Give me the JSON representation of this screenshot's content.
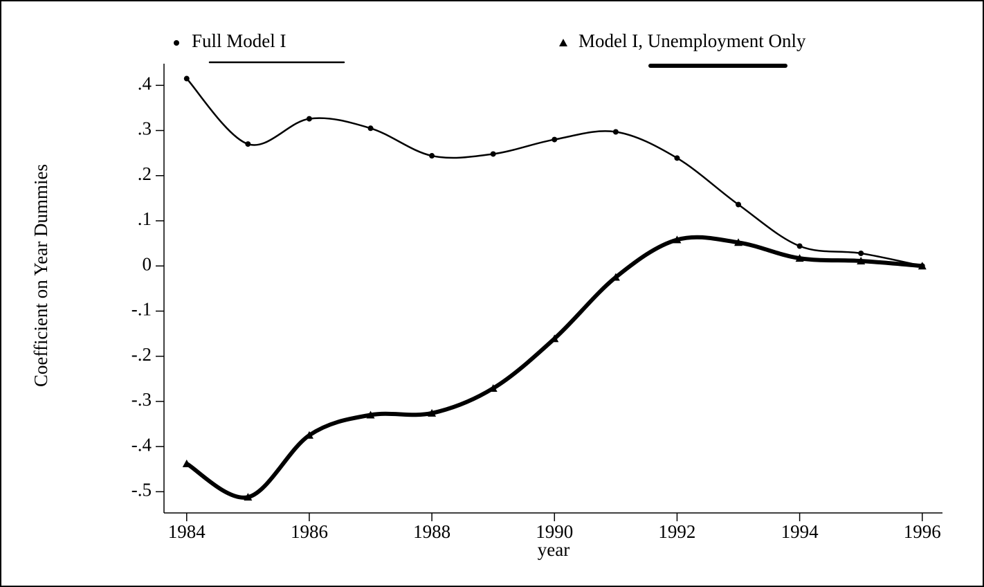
{
  "chart_data": {
    "type": "line",
    "x": [
      1984,
      1985,
      1986,
      1987,
      1988,
      1989,
      1990,
      1991,
      1992,
      1993,
      1994,
      1995,
      1996
    ],
    "series": [
      {
        "name": "Full Model I",
        "color": "#000000",
        "line_width": 2.5,
        "marker": "circle",
        "values": [
          0.415,
          0.27,
          0.326,
          0.305,
          0.244,
          0.248,
          0.28,
          0.297,
          0.239,
          0.136,
          0.044,
          0.028,
          0
        ]
      },
      {
        "name": "Model I, Unemployment Only",
        "color": "#000000",
        "line_width": 6,
        "marker": "triangle",
        "values": [
          -0.438,
          -0.512,
          -0.375,
          -0.33,
          -0.326,
          -0.271,
          -0.161,
          -0.025,
          0.058,
          0.052,
          0.017,
          0.011,
          0
        ]
      }
    ],
    "xlabel": "year",
    "ylabel": "Coefficient on Year Dummies",
    "xlim": [
      1983.63,
      1996.33
    ],
    "xticks": [
      1984,
      1986,
      1988,
      1990,
      1992,
      1994,
      1996
    ],
    "ylim": [
      -0.547,
      0.448
    ],
    "yticks": [
      {
        "value": -0.5,
        "label": "-.5"
      },
      {
        "value": -0.4,
        "label": "-.4"
      },
      {
        "value": -0.3,
        "label": "-.3"
      },
      {
        "value": -0.2,
        "label": "-.2"
      },
      {
        "value": -0.1,
        "label": "-.1"
      },
      0,
      {
        "value": 0.1,
        "label": ".1"
      },
      {
        "value": 0.2,
        "label": ".2"
      },
      {
        "value": 0.3,
        "label": ".3"
      },
      {
        "value": 0.4,
        "label": ".4"
      }
    ],
    "grid": false
  }
}
